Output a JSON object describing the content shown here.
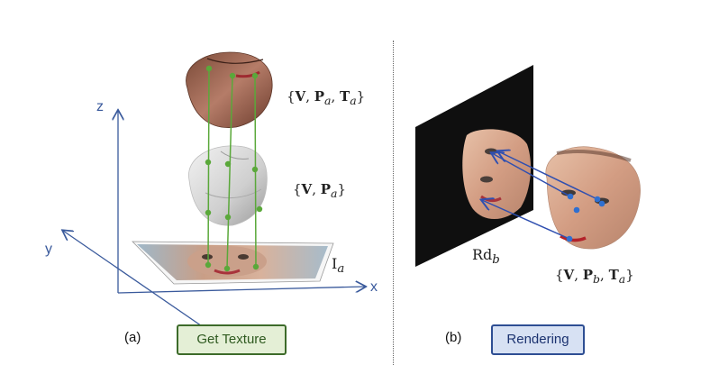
{
  "axes": {
    "x": "x",
    "y": "y",
    "z": "z"
  },
  "left": {
    "top_params": {
      "V": "V",
      "P": "P",
      "P_sub": "a",
      "T": "T",
      "T_sub": "a"
    },
    "mid_params": {
      "V": "V",
      "P": "P",
      "P_sub": "a"
    },
    "image_label": {
      "base": "I",
      "sub": "a"
    },
    "panel_label": "(a)",
    "button_label": "Get Texture"
  },
  "right": {
    "render_label": {
      "base": "Rd",
      "sub": "b"
    },
    "params": {
      "V": "V",
      "P": "P",
      "P_sub": "b",
      "T": "T",
      "T_sub": "a"
    },
    "panel_label": "(b)",
    "button_label": "Rendering"
  },
  "colors": {
    "axis": "#3a5a9c",
    "landmark_green": "#5aa83a",
    "landmark_blue": "#2f6fd0",
    "texture_button_border": "#3d6b2a",
    "render_button_border": "#2e4e93"
  }
}
